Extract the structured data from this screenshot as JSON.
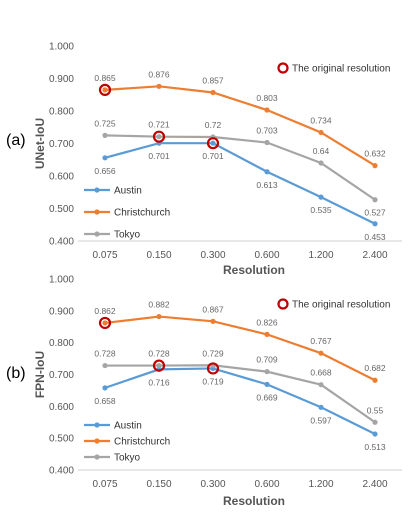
{
  "chart_data": [
    {
      "type": "line",
      "panel_label": "(a)",
      "ylabel": "UNet-IoU",
      "xlabel": "Resolution",
      "categories": [
        "0.075",
        "0.150",
        "0.300",
        "0.600",
        "1.200",
        "2.400"
      ],
      "ylim": [
        0.4,
        1.0
      ],
      "yticks": [
        "0.400",
        "0.500",
        "0.600",
        "0.700",
        "0.800",
        "0.900",
        "1.000"
      ],
      "grid": false,
      "legend_position": "bottom-left",
      "series": [
        {
          "name": "Austin",
          "color": "#5b9bd5",
          "values": [
            0.656,
            0.701,
            0.701,
            0.613,
            0.535,
            0.453
          ]
        },
        {
          "name": "Christchurch",
          "color": "#ed7d31",
          "values": [
            0.865,
            0.876,
            0.857,
            0.803,
            0.734,
            0.632
          ]
        },
        {
          "name": "Tokyo",
          "color": "#a5a5a5",
          "values": [
            0.725,
            0.721,
            0.72,
            0.703,
            0.64,
            0.527
          ]
        }
      ],
      "label_positions": {
        "Austin": [
          "below",
          "below",
          "below",
          "below",
          "below",
          "below"
        ],
        "Christchurch": [
          "above",
          "above",
          "above",
          "above",
          "above",
          "above"
        ],
        "Tokyo": [
          "above",
          "above",
          "above",
          "above",
          "above",
          "below"
        ]
      },
      "highlights": [
        {
          "series": "Christchurch",
          "index": 0
        },
        {
          "series": "Tokyo",
          "index": 1
        },
        {
          "series": "Austin",
          "index": 2
        }
      ],
      "highlight_legend": "The original resolution",
      "highlight_color": "#c00000"
    },
    {
      "type": "line",
      "panel_label": "(b)",
      "ylabel": "FPN-IoU",
      "xlabel": "Resolution",
      "categories": [
        "0.075",
        "0.150",
        "0.300",
        "0.600",
        "1.200",
        "2.400"
      ],
      "ylim": [
        0.4,
        1.0
      ],
      "yticks": [
        "0.400",
        "0.500",
        "0.600",
        "0.700",
        "0.800",
        "0.900",
        "1.000"
      ],
      "grid": false,
      "legend_position": "bottom-left",
      "series": [
        {
          "name": "Austin",
          "color": "#5b9bd5",
          "values": [
            0.658,
            0.716,
            0.719,
            0.669,
            0.597,
            0.513
          ]
        },
        {
          "name": "Christchurch",
          "color": "#ed7d31",
          "values": [
            0.862,
            0.882,
            0.867,
            0.826,
            0.767,
            0.682
          ]
        },
        {
          "name": "Tokyo",
          "color": "#a5a5a5",
          "values": [
            0.728,
            0.728,
            0.729,
            0.709,
            0.668,
            0.55
          ]
        }
      ],
      "label_positions": {
        "Austin": [
          "below",
          "below",
          "below",
          "below",
          "below",
          "below"
        ],
        "Christchurch": [
          "above",
          "above",
          "above",
          "above",
          "above",
          "above"
        ],
        "Tokyo": [
          "above",
          "above",
          "above",
          "above",
          "above",
          "above"
        ]
      },
      "highlights": [
        {
          "series": "Christchurch",
          "index": 0
        },
        {
          "series": "Tokyo",
          "index": 1
        },
        {
          "series": "Austin",
          "index": 2
        }
      ],
      "highlight_legend": "The original resolution",
      "highlight_color": "#c00000"
    }
  ]
}
